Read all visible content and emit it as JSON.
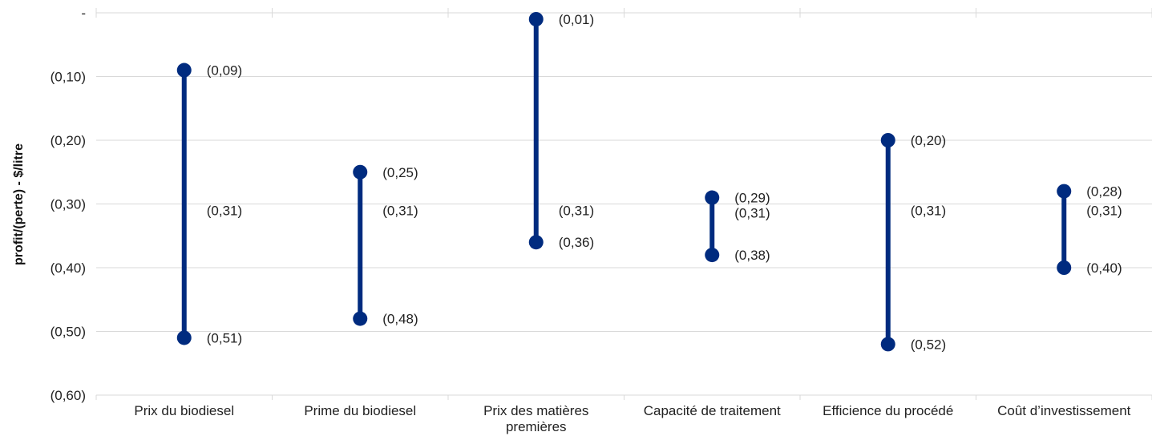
{
  "chart_data": {
    "type": "range",
    "ylabel": "profit/(perte) - $/litre",
    "ylim": [
      -0.6,
      0.0
    ],
    "y_ticks": [
      0,
      -0.1,
      -0.2,
      -0.3,
      -0.4,
      -0.5,
      -0.6
    ],
    "y_tick_labels": [
      "-",
      "(0,10)",
      "(0,20)",
      "(0,30)",
      "(0,40)",
      "(0,50)",
      "(0,60)"
    ],
    "grid": "horizontal",
    "colors": {
      "series": "#002b7f",
      "grid": "#d9d9d9",
      "text": "#222222"
    },
    "categories": [
      {
        "lines": [
          "Prix du biodiesel"
        ],
        "high": -0.09,
        "low": -0.51,
        "base": -0.31,
        "high_label": "(0,09)",
        "low_label": "(0,51)",
        "base_label": "(0,31)"
      },
      {
        "lines": [
          "Prime du biodiesel"
        ],
        "high": -0.25,
        "low": -0.48,
        "base": -0.31,
        "high_label": "(0,25)",
        "low_label": "(0,48)",
        "base_label": "(0,31)"
      },
      {
        "lines": [
          "Prix des matières",
          "premières"
        ],
        "high": -0.01,
        "low": -0.36,
        "base": -0.31,
        "high_label": "(0,01)",
        "low_label": "(0,36)",
        "base_label": "(0,31)"
      },
      {
        "lines": [
          "Capacité de traitement"
        ],
        "high": -0.29,
        "low": -0.38,
        "base": -0.31,
        "high_label": "(0,29)",
        "low_label": "(0,38)",
        "base_label": "(0,31)"
      },
      {
        "lines": [
          "Efficience du procédé"
        ],
        "high": -0.2,
        "low": -0.52,
        "base": -0.31,
        "high_label": "(0,20)",
        "low_label": "(0,52)",
        "base_label": "(0,31)"
      },
      {
        "lines": [
          "Coût d’investissement"
        ],
        "high": -0.28,
        "low": -0.4,
        "base": -0.31,
        "high_label": "(0,28)",
        "low_label": "(0,40)",
        "base_label": "(0,31)"
      }
    ]
  }
}
